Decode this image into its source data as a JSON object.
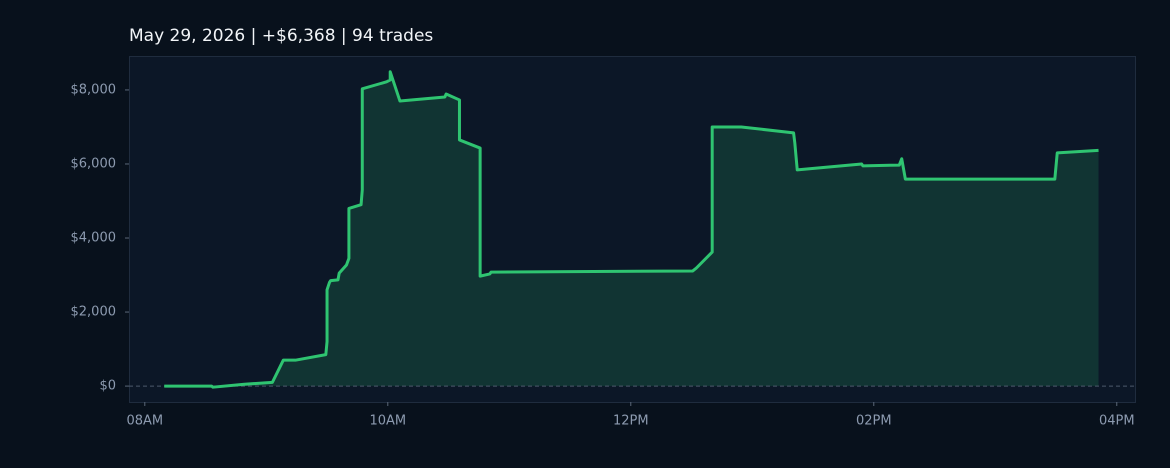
{
  "chart_data": {
    "type": "line",
    "title": "May 29, 2026  |  +$6,368  |  94 trades",
    "color": "#2fc471",
    "x": [
      8.16,
      8.55,
      8.56,
      8.82,
      9.05,
      9.14,
      9.24,
      9.49,
      9.5,
      9.5,
      9.52,
      9.53,
      9.59,
      9.6,
      9.66,
      9.68,
      9.68,
      9.78,
      9.79,
      9.79,
      9.99,
      10.02,
      10.02,
      10.1,
      10.47,
      10.48,
      10.59,
      10.59,
      10.76,
      10.76,
      10.84,
      10.85,
      12.51,
      12.54,
      12.67,
      12.67,
      12.91,
      13.34,
      13.35,
      13.37,
      13.9,
      13.91,
      14.21,
      14.23,
      14.26,
      15.49,
      15.51,
      15.85
    ],
    "values": [
      0,
      0,
      -30,
      50,
      100,
      700,
      700,
      850,
      1200,
      2600,
      2800,
      2850,
      2870,
      3050,
      3270,
      3450,
      4800,
      4900,
      5300,
      8030,
      8220,
      8270,
      8490,
      7700,
      7810,
      7890,
      7730,
      6650,
      6430,
      2970,
      3030,
      3080,
      3110,
      3190,
      3620,
      7000,
      7000,
      6840,
      6570,
      5840,
      6000,
      5950,
      5970,
      6140,
      5590,
      5590,
      6300,
      6368
    ],
    "xlim": [
      7.87,
      16.15
    ],
    "ylim": [
      -430,
      8890
    ],
    "xticks": [
      {
        "value": 8,
        "label": "08AM"
      },
      {
        "value": 10,
        "label": "10AM"
      },
      {
        "value": 12,
        "label": "12PM"
      },
      {
        "value": 14,
        "label": "02PM"
      },
      {
        "value": 16,
        "label": "04PM"
      }
    ],
    "yticks": [
      {
        "value": 0,
        "label": "$0"
      },
      {
        "value": 2000,
        "label": "$2,000"
      },
      {
        "value": 4000,
        "label": "$4,000"
      },
      {
        "value": 6000,
        "label": "$6,000"
      },
      {
        "value": 8000,
        "label": "$8,000"
      }
    ],
    "zero_line": true
  }
}
